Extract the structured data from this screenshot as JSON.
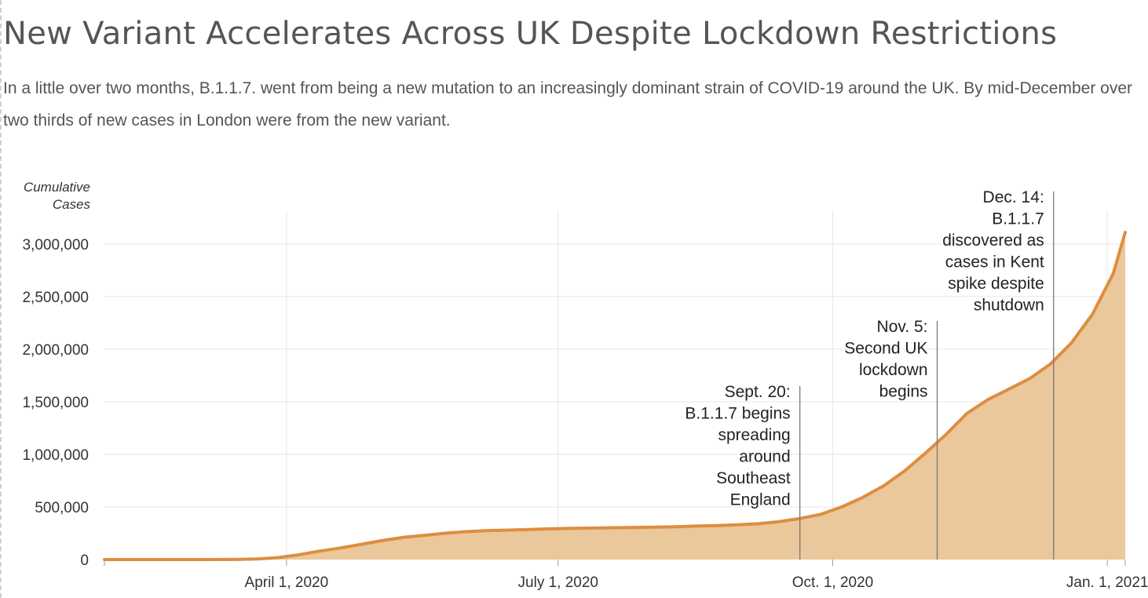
{
  "title": "New Variant Accelerates Across UK Despite Lockdown Restrictions",
  "subtitle": "In a little over two months, B.1.1.7. went from being a new mutation to an increasingly dominant strain of COVID-19 around the UK. By mid-December over two thirds of new cases in London were from the new variant.",
  "chart_data": {
    "type": "area",
    "ylabel": [
      "Cumulative",
      "Cases"
    ],
    "xlim": [
      "2020-01-31",
      "2021-01-07"
    ],
    "ylim": [
      0,
      3200000
    ],
    "grid": true,
    "colors": {
      "line": "#dd8e3f",
      "fill": "#ebc79c",
      "grid": "#e6e6e6",
      "annotation_line": "#777777"
    },
    "y_ticks": [
      {
        "value": 0,
        "label": "0"
      },
      {
        "value": 500000,
        "label": "500,000"
      },
      {
        "value": 1000000,
        "label": "1,000,000"
      },
      {
        "value": 1500000,
        "label": "1,500,000"
      },
      {
        "value": 2000000,
        "label": "2,000,000"
      },
      {
        "value": 2500000,
        "label": "2,500,000"
      },
      {
        "value": 3000000,
        "label": "3,000,000"
      }
    ],
    "x_ticks": [
      {
        "date": "2020-04-01",
        "label": "April 1, 2020"
      },
      {
        "date": "2020-07-01",
        "label": "July 1, 2020"
      },
      {
        "date": "2020-10-01",
        "label": "Oct. 1, 2020"
      },
      {
        "date": "2021-01-01",
        "label": "Jan. 1, 2021"
      }
    ],
    "series": [
      {
        "points": [
          [
            "2020-01-31",
            0
          ],
          [
            "2020-02-29",
            0
          ],
          [
            "2020-03-15",
            1000
          ],
          [
            "2020-03-22",
            5000
          ],
          [
            "2020-03-29",
            18000
          ],
          [
            "2020-04-05",
            45000
          ],
          [
            "2020-04-12",
            80000
          ],
          [
            "2020-04-19",
            110000
          ],
          [
            "2020-04-26",
            145000
          ],
          [
            "2020-05-03",
            180000
          ],
          [
            "2020-05-10",
            210000
          ],
          [
            "2020-05-17",
            230000
          ],
          [
            "2020-05-24",
            250000
          ],
          [
            "2020-05-31",
            265000
          ],
          [
            "2020-06-07",
            275000
          ],
          [
            "2020-06-14",
            280000
          ],
          [
            "2020-06-21",
            285000
          ],
          [
            "2020-06-28",
            292000
          ],
          [
            "2020-07-05",
            296000
          ],
          [
            "2020-07-12",
            299000
          ],
          [
            "2020-07-19",
            302000
          ],
          [
            "2020-07-26",
            305000
          ],
          [
            "2020-08-02",
            308000
          ],
          [
            "2020-08-09",
            312000
          ],
          [
            "2020-08-16",
            318000
          ],
          [
            "2020-08-23",
            323000
          ],
          [
            "2020-08-30",
            330000
          ],
          [
            "2020-09-06",
            340000
          ],
          [
            "2020-09-13",
            360000
          ],
          [
            "2020-09-20",
            390000
          ],
          [
            "2020-09-27",
            430000
          ],
          [
            "2020-10-04",
            500000
          ],
          [
            "2020-10-11",
            590000
          ],
          [
            "2020-10-18",
            700000
          ],
          [
            "2020-10-25",
            840000
          ],
          [
            "2020-11-01",
            1010000
          ],
          [
            "2020-11-08",
            1190000
          ],
          [
            "2020-11-15",
            1390000
          ],
          [
            "2020-11-22",
            1520000
          ],
          [
            "2020-11-29",
            1620000
          ],
          [
            "2020-12-06",
            1720000
          ],
          [
            "2020-12-13",
            1860000
          ],
          [
            "2020-12-20",
            2060000
          ],
          [
            "2020-12-27",
            2330000
          ],
          [
            "2021-01-03",
            2720000
          ],
          [
            "2021-01-07",
            3110000
          ]
        ]
      }
    ],
    "annotations": [
      {
        "date": "2020-09-20",
        "lines": [
          "Sept. 20:",
          "B.1.1.7 begins",
          "spreading",
          "around",
          "Southeast",
          "England"
        ]
      },
      {
        "date": "2020-11-05",
        "lines": [
          "Nov. 5:",
          "Second UK",
          "lockdown",
          "begins"
        ]
      },
      {
        "date": "2020-12-14",
        "lines": [
          "Dec. 14:",
          "B.1.1.7",
          "discovered as",
          "cases in Kent",
          "spike despite",
          "shutdown"
        ]
      }
    ]
  }
}
